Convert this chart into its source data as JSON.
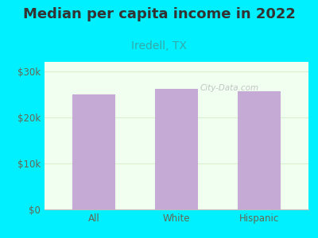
{
  "title": "Median per capita income in 2022",
  "subtitle": "Iredell, TX",
  "categories": [
    "All",
    "White",
    "Hispanic"
  ],
  "values": [
    25000,
    26200,
    25700
  ],
  "bar_color": "#c4aad4",
  "background_outer": "#00f0ff",
  "background_inner": "#f0fff0",
  "title_color": "#333333",
  "subtitle_color": "#33aaaa",
  "axis_text_color": "#666655",
  "ylim": [
    0,
    32000
  ],
  "yticks": [
    0,
    10000,
    20000,
    30000
  ],
  "ytick_labels": [
    "$0",
    "$10k",
    "$20k",
    "$30k"
  ],
  "watermark": "City-Data.com",
  "title_fontsize": 13,
  "subtitle_fontsize": 10,
  "tick_fontsize": 8.5
}
